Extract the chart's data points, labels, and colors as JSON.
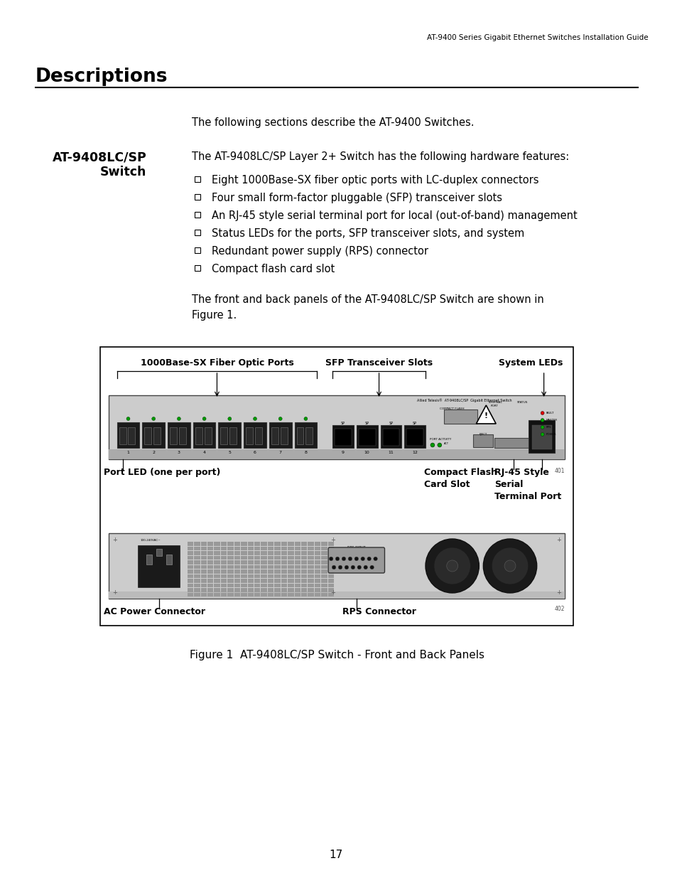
{
  "header_text": "AT-9400 Series Gigabit Ethernet Switches Installation Guide",
  "title": "Descriptions",
  "intro_text": "The following sections describe the AT-9400 Switches.",
  "section_intro": "The AT-9408LC/SP Layer 2+ Switch has the following hardware features:",
  "bullet_items": [
    "Eight 1000Base-SX fiber optic ports with LC-duplex connectors",
    "Four small form-factor pluggable (SFP) transceiver slots",
    "An RJ-45 style serial terminal port for local (out-of-band) management",
    "Status LEDs for the ports, SFP transceiver slots, and system",
    "Redundant power supply (RPS) connector",
    "Compact flash card slot"
  ],
  "closing_text": "The front and back panels of the AT-9408LC/SP Switch are shown in\nFigure 1.",
  "figure_caption": "Figure 1  AT-9408LC/SP Switch - Front and Back Panels",
  "diagram_labels": {
    "fiber_ports": "1000Base-SX Fiber Optic Ports",
    "sfp_slots": "SFP Transceiver Slots",
    "system_leds": "System LEDs",
    "port_led": "Port LED (one per port)",
    "compact_flash": "Compact Flash\nCard Slot",
    "rj45": "RJ-45 Style\nSerial\nTerminal Port",
    "ac_power": "AC Power Connector",
    "rps_connector": "RPS Connector"
  },
  "page_number": "17",
  "bg_color": "#ffffff",
  "text_color": "#000000",
  "panel_color": "#d0d0d0",
  "panel_dark": "#999999"
}
